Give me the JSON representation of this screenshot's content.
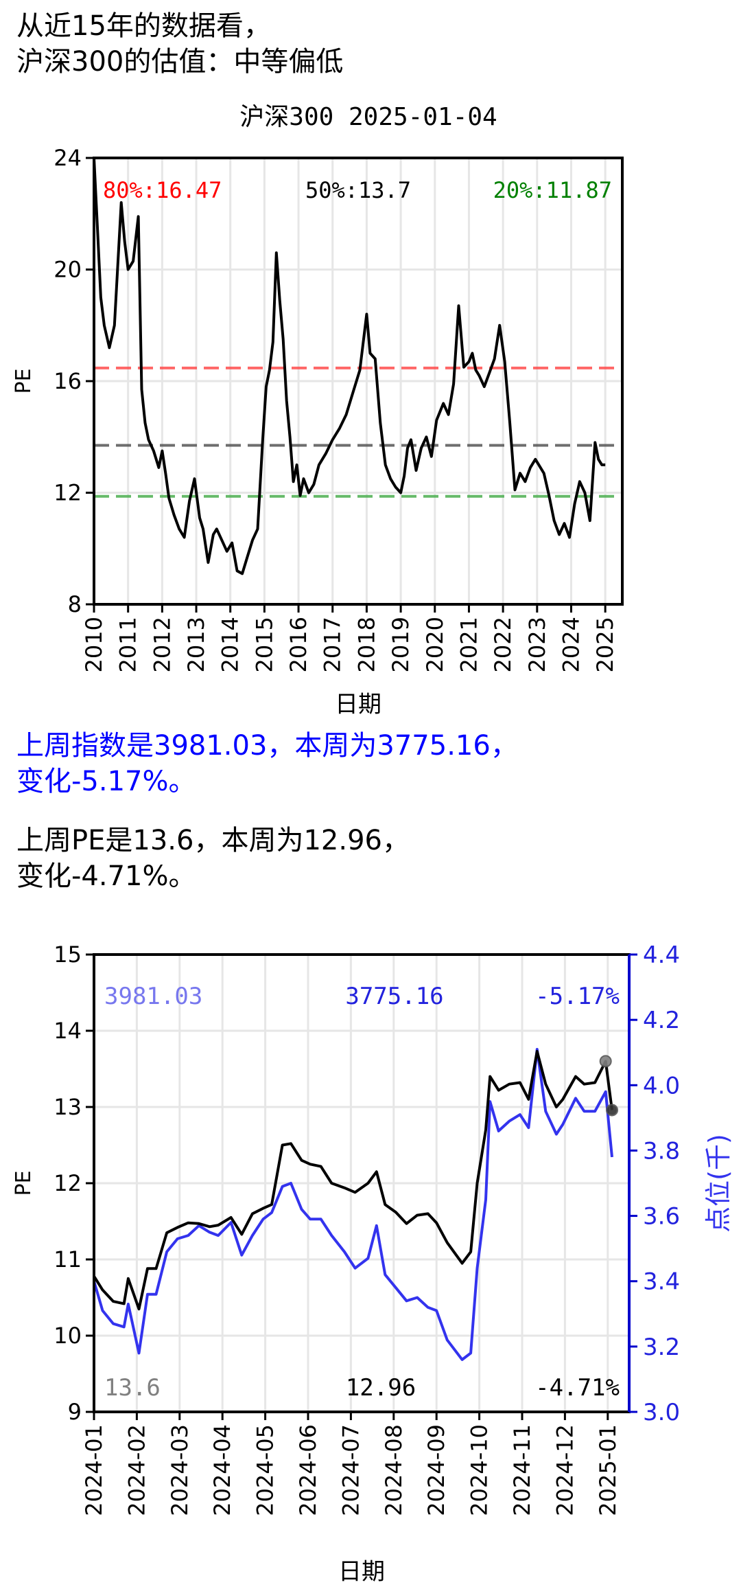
{
  "headline": {
    "line1": "从近15年的数据看，",
    "line2": "沪深300的估值：中等偏低"
  },
  "summary": {
    "index_line1": "上周指数是3981.03，本周为3775.16，",
    "index_line2": "变化-5.17%。",
    "pe_line1": "上周PE是13.6，本周为12.96，",
    "pe_line2": "变化-4.71%。"
  },
  "colors": {
    "pe": "#000000",
    "index": "#3333ee",
    "p80": "#ff4d4d",
    "p50": "#555555",
    "p20": "#4caf50"
  },
  "chart_data": [
    {
      "type": "line",
      "title": "沪深300 2025-01-04",
      "xlabel": "日期",
      "ylabel": "PE",
      "ylim": [
        8,
        24
      ],
      "xlim": [
        2010,
        2025.5
      ],
      "yticks": [
        "8",
        "12",
        "16",
        "20",
        "24"
      ],
      "xticks": [
        "2010",
        "2011",
        "2012",
        "2013",
        "2014",
        "2015",
        "2016",
        "2017",
        "2018",
        "2019",
        "2020",
        "2021",
        "2022",
        "2023",
        "2024",
        "2025"
      ],
      "grid": true,
      "annotations": {
        "p80": "80%:16.47",
        "p50": "50%:13.7",
        "p20": "20%:11.87"
      },
      "percentile_lines": [
        {
          "label": "80%",
          "value": 16.47,
          "color": "#ff4d4d"
        },
        {
          "label": "50%",
          "value": 13.7,
          "color": "#555555"
        },
        {
          "label": "20%",
          "value": 11.87,
          "color": "#4caf50"
        }
      ],
      "series": [
        {
          "x": [
            2010.0,
            2010.1,
            2010.2,
            2010.3,
            2010.45,
            2010.6,
            2010.8,
            2010.9,
            2011.0,
            2011.15,
            2011.3,
            2011.4,
            2011.5,
            2011.6,
            2011.75,
            2011.9,
            2012.0,
            2012.1,
            2012.2,
            2012.35,
            2012.5,
            2012.65,
            2012.8,
            2012.95,
            2013.1,
            2013.2,
            2013.35,
            2013.5,
            2013.6,
            2013.75,
            2013.9,
            2014.05,
            2014.2,
            2014.35,
            2014.5,
            2014.65,
            2014.8,
            2014.95,
            2015.05,
            2015.15,
            2015.25,
            2015.35,
            2015.45,
            2015.55,
            2015.65,
            2015.75,
            2015.85,
            2015.95,
            2016.05,
            2016.15,
            2016.3,
            2016.45,
            2016.6,
            2016.8,
            2017.0,
            2017.2,
            2017.4,
            2017.6,
            2017.8,
            2018.0,
            2018.1,
            2018.25,
            2018.4,
            2018.55,
            2018.7,
            2018.85,
            2019.0,
            2019.1,
            2019.2,
            2019.3,
            2019.45,
            2019.6,
            2019.75,
            2019.9,
            2020.05,
            2020.15,
            2020.25,
            2020.4,
            2020.55,
            2020.7,
            2020.85,
            2021.0,
            2021.1,
            2021.2,
            2021.3,
            2021.45,
            2021.6,
            2021.75,
            2021.9,
            2022.05,
            2022.2,
            2022.35,
            2022.5,
            2022.65,
            2022.8,
            2022.95,
            2023.05,
            2023.2,
            2023.35,
            2023.5,
            2023.65,
            2023.8,
            2023.95,
            2024.1,
            2024.25,
            2024.4,
            2024.55,
            2024.7,
            2024.8,
            2024.9,
            2025.0
          ],
          "values": [
            24.0,
            21.5,
            19.0,
            18.0,
            17.2,
            18.0,
            22.4,
            21.0,
            20.0,
            20.3,
            21.9,
            15.7,
            14.5,
            13.9,
            13.5,
            12.9,
            13.5,
            12.7,
            11.8,
            11.2,
            10.7,
            10.4,
            11.7,
            12.5,
            11.1,
            10.7,
            9.5,
            10.5,
            10.7,
            10.3,
            9.9,
            10.2,
            9.2,
            9.1,
            9.7,
            10.3,
            10.7,
            13.9,
            15.8,
            16.4,
            17.4,
            20.6,
            18.9,
            17.5,
            15.3,
            14.0,
            12.4,
            13.0,
            11.9,
            12.5,
            12.0,
            12.3,
            13.0,
            13.4,
            13.9,
            14.3,
            14.8,
            15.6,
            16.4,
            18.4,
            17.0,
            16.8,
            14.5,
            13.0,
            12.5,
            12.2,
            12.0,
            12.6,
            13.6,
            13.9,
            12.8,
            13.6,
            14.0,
            13.3,
            14.6,
            14.9,
            15.2,
            14.8,
            15.9,
            18.7,
            16.5,
            16.7,
            17.0,
            16.4,
            16.2,
            15.8,
            16.3,
            16.8,
            18.0,
            16.7,
            14.5,
            12.1,
            12.7,
            12.4,
            12.9,
            13.2,
            13.0,
            12.7,
            11.9,
            11.0,
            10.5,
            10.9,
            10.4,
            11.6,
            12.4,
            12.0,
            11.0,
            13.8,
            13.2,
            13.0,
            13.0
          ]
        }
      ]
    },
    {
      "type": "line",
      "xlabel": "日期",
      "ylabel": "PE",
      "y2label": "点位(千)",
      "ylim": [
        9,
        15
      ],
      "y2lim": [
        3.0,
        4.4
      ],
      "yticks": [
        "9",
        "10",
        "11",
        "12",
        "13",
        "14",
        "15"
      ],
      "y2ticks": [
        "3.0",
        "3.2",
        "3.4",
        "3.6",
        "3.8",
        "4.0",
        "4.2",
        "4.4"
      ],
      "xticks": [
        "2024-01",
        "2024-02",
        "2024-03",
        "2024-04",
        "2024-05",
        "2024-06",
        "2024-07",
        "2024-08",
        "2024-09",
        "2024-10",
        "2024-11",
        "2024-12",
        "2025-01"
      ],
      "grid": true,
      "annotations": {
        "index_prev": "3981.03",
        "index_now": "3775.16",
        "index_change": "-5.17%",
        "pe_prev": "13.6",
        "pe_now": "12.96",
        "pe_change": "-4.71%"
      },
      "x": [
        0,
        0.2,
        0.45,
        0.7,
        0.8,
        1.05,
        1.25,
        1.45,
        1.7,
        1.95,
        2.2,
        2.45,
        2.7,
        2.9,
        3.2,
        3.45,
        3.7,
        3.95,
        4.15,
        4.4,
        4.6,
        4.85,
        5.05,
        5.3,
        5.55,
        5.85,
        6.1,
        6.4,
        6.6,
        6.8,
        7.05,
        7.3,
        7.55,
        7.8,
        8.0,
        8.25,
        8.6,
        8.8,
        8.95,
        9.15,
        9.25,
        9.45,
        9.7,
        9.95,
        10.15,
        10.35,
        10.55,
        10.8,
        10.95,
        11.25,
        11.45,
        11.7,
        11.95,
        12.1
      ],
      "series": [
        {
          "name": "PE",
          "axis": "left",
          "values": [
            10.78,
            10.6,
            10.45,
            10.42,
            10.75,
            10.35,
            10.88,
            10.88,
            11.35,
            11.42,
            11.48,
            11.47,
            11.43,
            11.45,
            11.55,
            11.33,
            11.6,
            11.67,
            11.72,
            12.5,
            12.52,
            12.3,
            12.25,
            12.22,
            12.0,
            11.94,
            11.88,
            12.0,
            12.15,
            11.72,
            11.62,
            11.47,
            11.58,
            11.6,
            11.48,
            11.22,
            10.95,
            11.1,
            12.0,
            12.7,
            13.4,
            13.22,
            13.3,
            13.32,
            13.1,
            13.73,
            13.3,
            13.0,
            13.1,
            13.4,
            13.3,
            13.32,
            13.6,
            12.96
          ]
        },
        {
          "name": "点位(千)",
          "axis": "right",
          "values": [
            3.4,
            3.31,
            3.27,
            3.26,
            3.33,
            3.18,
            3.36,
            3.36,
            3.49,
            3.53,
            3.54,
            3.57,
            3.55,
            3.54,
            3.58,
            3.48,
            3.54,
            3.59,
            3.61,
            3.69,
            3.7,
            3.62,
            3.59,
            3.59,
            3.54,
            3.49,
            3.44,
            3.47,
            3.57,
            3.42,
            3.38,
            3.34,
            3.35,
            3.32,
            3.31,
            3.22,
            3.16,
            3.18,
            3.44,
            3.65,
            3.95,
            3.86,
            3.89,
            3.91,
            3.87,
            4.11,
            3.92,
            3.85,
            3.88,
            3.96,
            3.92,
            3.92,
            3.98,
            3.78
          ]
        }
      ],
      "markers": {
        "prev_index": 12.0,
        "now_index": 12.1
      }
    }
  ]
}
